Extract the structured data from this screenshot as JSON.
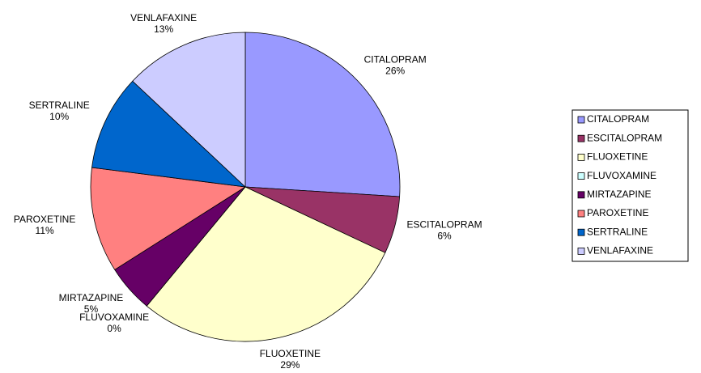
{
  "chart_data": {
    "type": "pie",
    "categories": [
      "CITALOPRAM",
      "ESCITALOPRAM",
      "FLUOXETINE",
      "FLUVOXAMINE",
      "MIRTAZAPINE",
      "PAROXETINE",
      "SERTRALINE",
      "VENLAFAXINE"
    ],
    "values": [
      26,
      6,
      29,
      0,
      5,
      11,
      10,
      13
    ],
    "value_labels": [
      "26%",
      "6%",
      "29%",
      "0%",
      "5%",
      "11%",
      "10%",
      "13%"
    ],
    "colors": [
      "#9999ff",
      "#993366",
      "#ffffcc",
      "#ccffff",
      "#660066",
      "#ff8080",
      "#0066cc",
      "#ccccff"
    ],
    "legend": "right"
  }
}
